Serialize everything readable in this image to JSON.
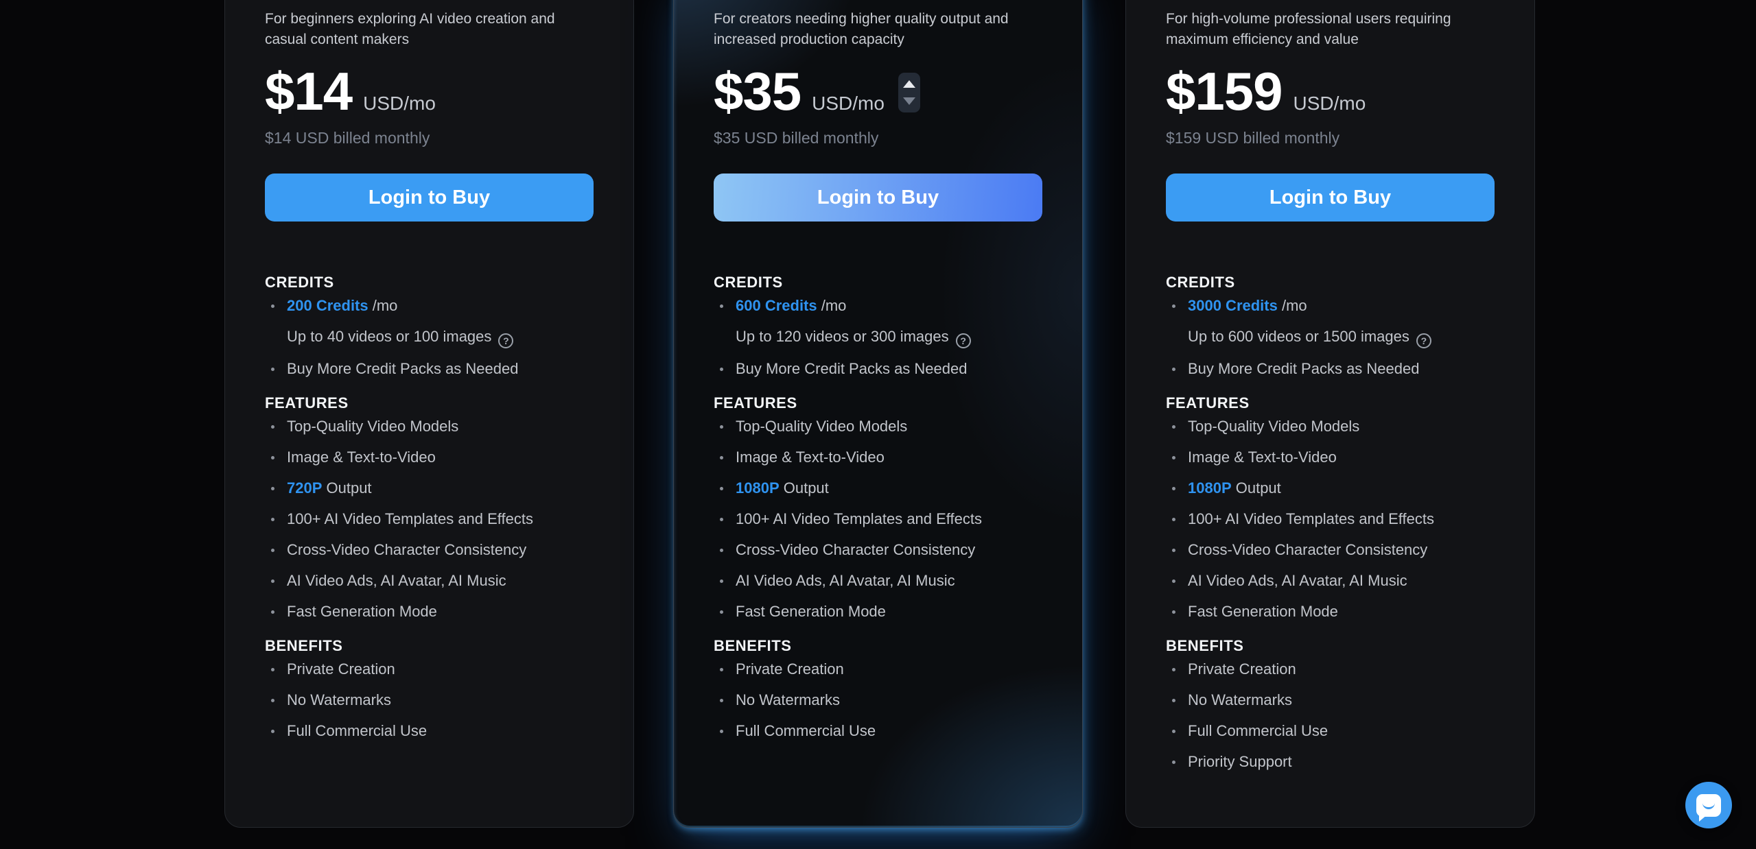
{
  "colors": {
    "accent": "#2f93f0",
    "button": "#3b9cf3",
    "button_gradient_from": "#8fc6f4",
    "button_gradient_to": "#4b7bf3",
    "chat": "#3b9af0",
    "page_background": "#060608",
    "card_background": "#121316"
  },
  "icons": {
    "help": "?"
  },
  "cards": [
    {
      "id": "basic",
      "highlighted": false,
      "has_stepper": false,
      "description": "For beginners exploring AI video creation and casual content makers",
      "price": "$14",
      "price_unit": "USD/mo",
      "billing": "$14 USD billed monthly",
      "cta": "Login to Buy",
      "sections": [
        {
          "title": "CREDITS",
          "items": [
            {
              "bullet": true,
              "help": false,
              "parts": [
                {
                  "t": "200 Credits",
                  "accent": true
                },
                {
                  "t": " /mo",
                  "accent": false
                }
              ]
            },
            {
              "bullet": false,
              "help": true,
              "parts": [
                {
                  "t": "Up to 40 videos or 100 images",
                  "accent": false
                }
              ]
            },
            {
              "bullet": true,
              "help": false,
              "parts": [
                {
                  "t": "Buy More Credit Packs as Needed",
                  "accent": false
                }
              ]
            }
          ]
        },
        {
          "title": "FEATURES",
          "items": [
            {
              "bullet": true,
              "help": false,
              "parts": [
                {
                  "t": "Top-Quality Video Models",
                  "accent": false
                }
              ]
            },
            {
              "bullet": true,
              "help": false,
              "parts": [
                {
                  "t": "Image & Text-to-Video",
                  "accent": false
                }
              ]
            },
            {
              "bullet": true,
              "help": false,
              "parts": [
                {
                  "t": "720P",
                  "accent": true
                },
                {
                  "t": " Output",
                  "accent": false
                }
              ]
            },
            {
              "bullet": true,
              "help": false,
              "parts": [
                {
                  "t": "100+ AI Video Templates and Effects",
                  "accent": false
                }
              ]
            },
            {
              "bullet": true,
              "help": false,
              "parts": [
                {
                  "t": "Cross-Video Character Consistency",
                  "accent": false
                }
              ]
            },
            {
              "bullet": true,
              "help": false,
              "parts": [
                {
                  "t": "AI Video Ads, AI Avatar, AI Music",
                  "accent": false
                }
              ]
            },
            {
              "bullet": true,
              "help": false,
              "parts": [
                {
                  "t": "Fast Generation Mode",
                  "accent": false
                }
              ]
            }
          ]
        },
        {
          "title": "BENEFITS",
          "items": [
            {
              "bullet": true,
              "help": false,
              "parts": [
                {
                  "t": "Private Creation",
                  "accent": false
                }
              ]
            },
            {
              "bullet": true,
              "help": false,
              "parts": [
                {
                  "t": "No Watermarks",
                  "accent": false
                }
              ]
            },
            {
              "bullet": true,
              "help": false,
              "parts": [
                {
                  "t": "Full Commercial Use",
                  "accent": false
                }
              ]
            }
          ]
        }
      ]
    },
    {
      "id": "pro",
      "highlighted": true,
      "has_stepper": true,
      "description": "For creators needing higher quality output and increased production capacity",
      "price": "$35",
      "price_unit": "USD/mo",
      "billing": "$35 USD billed monthly",
      "cta": "Login to Buy",
      "sections": [
        {
          "title": "CREDITS",
          "items": [
            {
              "bullet": true,
              "help": false,
              "parts": [
                {
                  "t": "600 Credits",
                  "accent": true
                },
                {
                  "t": " /mo",
                  "accent": false
                }
              ]
            },
            {
              "bullet": false,
              "help": true,
              "parts": [
                {
                  "t": "Up to 120 videos or 300 images",
                  "accent": false
                }
              ]
            },
            {
              "bullet": true,
              "help": false,
              "parts": [
                {
                  "t": "Buy More Credit Packs as Needed",
                  "accent": false
                }
              ]
            }
          ]
        },
        {
          "title": "FEATURES",
          "items": [
            {
              "bullet": true,
              "help": false,
              "parts": [
                {
                  "t": "Top-Quality Video Models",
                  "accent": false
                }
              ]
            },
            {
              "bullet": true,
              "help": false,
              "parts": [
                {
                  "t": "Image & Text-to-Video",
                  "accent": false
                }
              ]
            },
            {
              "bullet": true,
              "help": false,
              "parts": [
                {
                  "t": "1080P",
                  "accent": true
                },
                {
                  "t": " Output",
                  "accent": false
                }
              ]
            },
            {
              "bullet": true,
              "help": false,
              "parts": [
                {
                  "t": "100+ AI Video Templates and Effects",
                  "accent": false
                }
              ]
            },
            {
              "bullet": true,
              "help": false,
              "parts": [
                {
                  "t": "Cross-Video Character Consistency",
                  "accent": false
                }
              ]
            },
            {
              "bullet": true,
              "help": false,
              "parts": [
                {
                  "t": "AI Video Ads, AI Avatar, AI Music",
                  "accent": false
                }
              ]
            },
            {
              "bullet": true,
              "help": false,
              "parts": [
                {
                  "t": "Fast Generation Mode",
                  "accent": false
                }
              ]
            }
          ]
        },
        {
          "title": "BENEFITS",
          "items": [
            {
              "bullet": true,
              "help": false,
              "parts": [
                {
                  "t": "Private Creation",
                  "accent": false
                }
              ]
            },
            {
              "bullet": true,
              "help": false,
              "parts": [
                {
                  "t": "No Watermarks",
                  "accent": false
                }
              ]
            },
            {
              "bullet": true,
              "help": false,
              "parts": [
                {
                  "t": "Full Commercial Use",
                  "accent": false
                }
              ]
            }
          ]
        }
      ]
    },
    {
      "id": "ultimate",
      "highlighted": false,
      "has_stepper": false,
      "description": "For high-volume professional users requiring maximum efficiency and value",
      "price": "$159",
      "price_unit": "USD/mo",
      "billing": "$159 USD billed monthly",
      "cta": "Login to Buy",
      "sections": [
        {
          "title": "CREDITS",
          "items": [
            {
              "bullet": true,
              "help": false,
              "parts": [
                {
                  "t": "3000 Credits",
                  "accent": true
                },
                {
                  "t": " /mo",
                  "accent": false
                }
              ]
            },
            {
              "bullet": false,
              "help": true,
              "parts": [
                {
                  "t": "Up to 600 videos or 1500 images",
                  "accent": false
                }
              ]
            },
            {
              "bullet": true,
              "help": false,
              "parts": [
                {
                  "t": "Buy More Credit Packs as Needed",
                  "accent": false
                }
              ]
            }
          ]
        },
        {
          "title": "FEATURES",
          "items": [
            {
              "bullet": true,
              "help": false,
              "parts": [
                {
                  "t": "Top-Quality Video Models",
                  "accent": false
                }
              ]
            },
            {
              "bullet": true,
              "help": false,
              "parts": [
                {
                  "t": "Image & Text-to-Video",
                  "accent": false
                }
              ]
            },
            {
              "bullet": true,
              "help": false,
              "parts": [
                {
                  "t": "1080P",
                  "accent": true
                },
                {
                  "t": " Output",
                  "accent": false
                }
              ]
            },
            {
              "bullet": true,
              "help": false,
              "parts": [
                {
                  "t": "100+ AI Video Templates and Effects",
                  "accent": false
                }
              ]
            },
            {
              "bullet": true,
              "help": false,
              "parts": [
                {
                  "t": "Cross-Video Character Consistency",
                  "accent": false
                }
              ]
            },
            {
              "bullet": true,
              "help": false,
              "parts": [
                {
                  "t": "AI Video Ads, AI Avatar, AI Music",
                  "accent": false
                }
              ]
            },
            {
              "bullet": true,
              "help": false,
              "parts": [
                {
                  "t": "Fast Generation Mode",
                  "accent": false
                }
              ]
            }
          ]
        },
        {
          "title": "BENEFITS",
          "items": [
            {
              "bullet": true,
              "help": false,
              "parts": [
                {
                  "t": "Private Creation",
                  "accent": false
                }
              ]
            },
            {
              "bullet": true,
              "help": false,
              "parts": [
                {
                  "t": "No Watermarks",
                  "accent": false
                }
              ]
            },
            {
              "bullet": true,
              "help": false,
              "parts": [
                {
                  "t": "Full Commercial Use",
                  "accent": false
                }
              ]
            },
            {
              "bullet": true,
              "help": false,
              "parts": [
                {
                  "t": "Priority Support",
                  "accent": false
                }
              ]
            }
          ]
        }
      ]
    }
  ]
}
